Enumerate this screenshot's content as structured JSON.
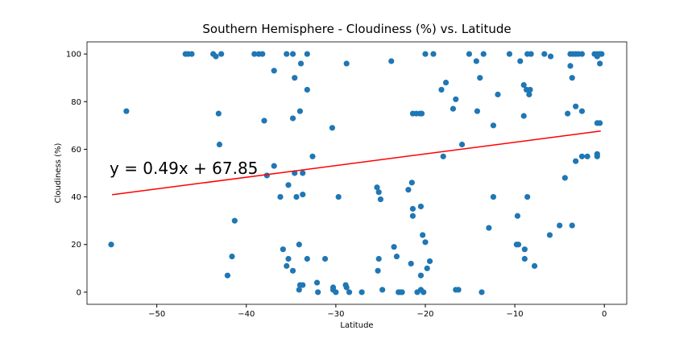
{
  "chart_data": {
    "type": "scatter",
    "title": "Southern Hemisphere - Cloudiness (%) vs. Latitude",
    "x_label": "Latitude",
    "y_label": "Cloudiness (%)",
    "color": "#1f77b4",
    "x": [
      -55.1,
      -53.4,
      -46.8,
      -46.5,
      -46.1,
      -43.7,
      -43.4,
      -42.8,
      -43.1,
      -43,
      -42.1,
      -41.6,
      -41.3,
      -39.1,
      -38.6,
      -38.2,
      -38,
      -37.7,
      -36.9,
      -36.9,
      -36.2,
      -35.9,
      -35.5,
      -35.3,
      -35.3,
      -35.5,
      -34.8,
      -34.6,
      -34.8,
      -34.6,
      -34.4,
      -34.8,
      -34.1,
      -34,
      -33.9,
      -34.1,
      -34,
      -33.7,
      -33.7,
      -33.7,
      -33.2,
      -33.2,
      -33.2,
      -32.6,
      -32.1,
      -32,
      -31.2,
      -30.4,
      -30.3,
      -30.3,
      -30,
      -29.7,
      -28.9,
      -28.8,
      -28.5,
      -28.8,
      -27.1,
      -25.4,
      -25.2,
      -25,
      -25.2,
      -25.3,
      -24.8,
      -23.8,
      -23.5,
      -23.2,
      -23,
      -22.8,
      -22.6,
      -21.9,
      -21.5,
      -21.4,
      -21.4,
      -21.6,
      -21.4,
      -21,
      -20.6,
      -20.4,
      -20.5,
      -20.9,
      -20.5,
      -20.5,
      -20.3,
      -20,
      -20.2,
      -20,
      -19.8,
      -19.5,
      -19.1,
      -18.2,
      -17.7,
      -18,
      -16.9,
      -16.6,
      -16.6,
      -16.3,
      -15.9,
      -15.1,
      -14.3,
      -14.2,
      -13.9,
      -13.5,
      -13.7,
      -12.9,
      -12.4,
      -12.4,
      -11.9,
      -10.6,
      -9.8,
      -9.6,
      -9.7,
      -9.4,
      -9,
      -8.7,
      -9,
      -8.9,
      -8.9,
      -8.6,
      -8.2,
      -8.4,
      -8.3,
      -8.6,
      -7.8,
      -6.7,
      -6,
      -6.1,
      -5,
      -4.4,
      -4.1,
      -3.8,
      -3.5,
      -3.2,
      -2.9,
      -2.5,
      -3.8,
      -3.6,
      -3.6,
      -3.2,
      -3.2,
      -2.5,
      -2.5,
      -1.9,
      -1.1,
      -0.8,
      -0.5,
      -0.3,
      -0.8,
      -0.8,
      -0.8,
      -0.8,
      -0.5,
      -0.5
    ],
    "values": [
      20,
      76,
      100,
      100,
      100,
      100,
      99,
      100,
      75,
      62,
      7,
      15,
      30,
      100,
      100,
      100,
      72,
      49,
      93,
      53,
      40,
      18,
      11,
      14,
      45,
      100,
      100,
      90,
      73,
      50,
      40,
      9,
      20,
      76,
      96,
      1,
      3,
      3,
      50,
      41,
      100,
      85,
      14,
      57,
      4,
      0,
      14,
      69,
      2,
      1,
      0,
      40,
      3,
      2,
      0,
      96,
      0,
      44,
      42,
      39,
      14,
      9,
      1,
      97,
      19,
      15,
      0,
      0,
      0,
      43,
      46,
      35,
      32,
      12,
      75,
      75,
      75,
      75,
      36,
      0,
      1,
      7,
      24,
      21,
      0,
      100,
      10,
      13,
      100,
      85,
      88,
      57,
      77,
      81,
      1,
      1,
      62,
      100,
      97,
      76,
      90,
      100,
      0,
      27,
      70,
      40,
      83,
      100,
      20,
      20,
      32,
      97,
      87,
      85,
      74,
      18,
      14,
      100,
      100,
      83,
      85,
      40,
      11,
      100,
      99,
      24,
      28,
      48,
      75,
      100,
      100,
      100,
      100,
      100,
      95,
      90,
      28,
      78,
      55,
      76,
      57,
      57,
      100,
      100,
      100,
      100,
      99,
      58,
      57,
      71,
      71,
      96
    ],
    "fit": {
      "x": [
        -55,
        -0.4
      ],
      "values": [
        40.9,
        67.65
      ],
      "color": "#ff0000"
    },
    "annotation": {
      "text": "y = 0.49x + 67.85",
      "color": "#ff0000"
    },
    "xlim": [
      -57.8,
      2.5
    ],
    "ylim": [
      -5.1,
      105.1
    ],
    "xticks": [
      {
        "value": -50,
        "label": "−50"
      },
      {
        "value": -40,
        "label": "−40"
      },
      {
        "value": -30,
        "label": "−30"
      },
      {
        "value": -20,
        "label": "−20"
      },
      {
        "value": -10,
        "label": "−10"
      },
      0
    ],
    "yticks": [
      0,
      20,
      40,
      60,
      80,
      100
    ],
    "grid": false
  }
}
